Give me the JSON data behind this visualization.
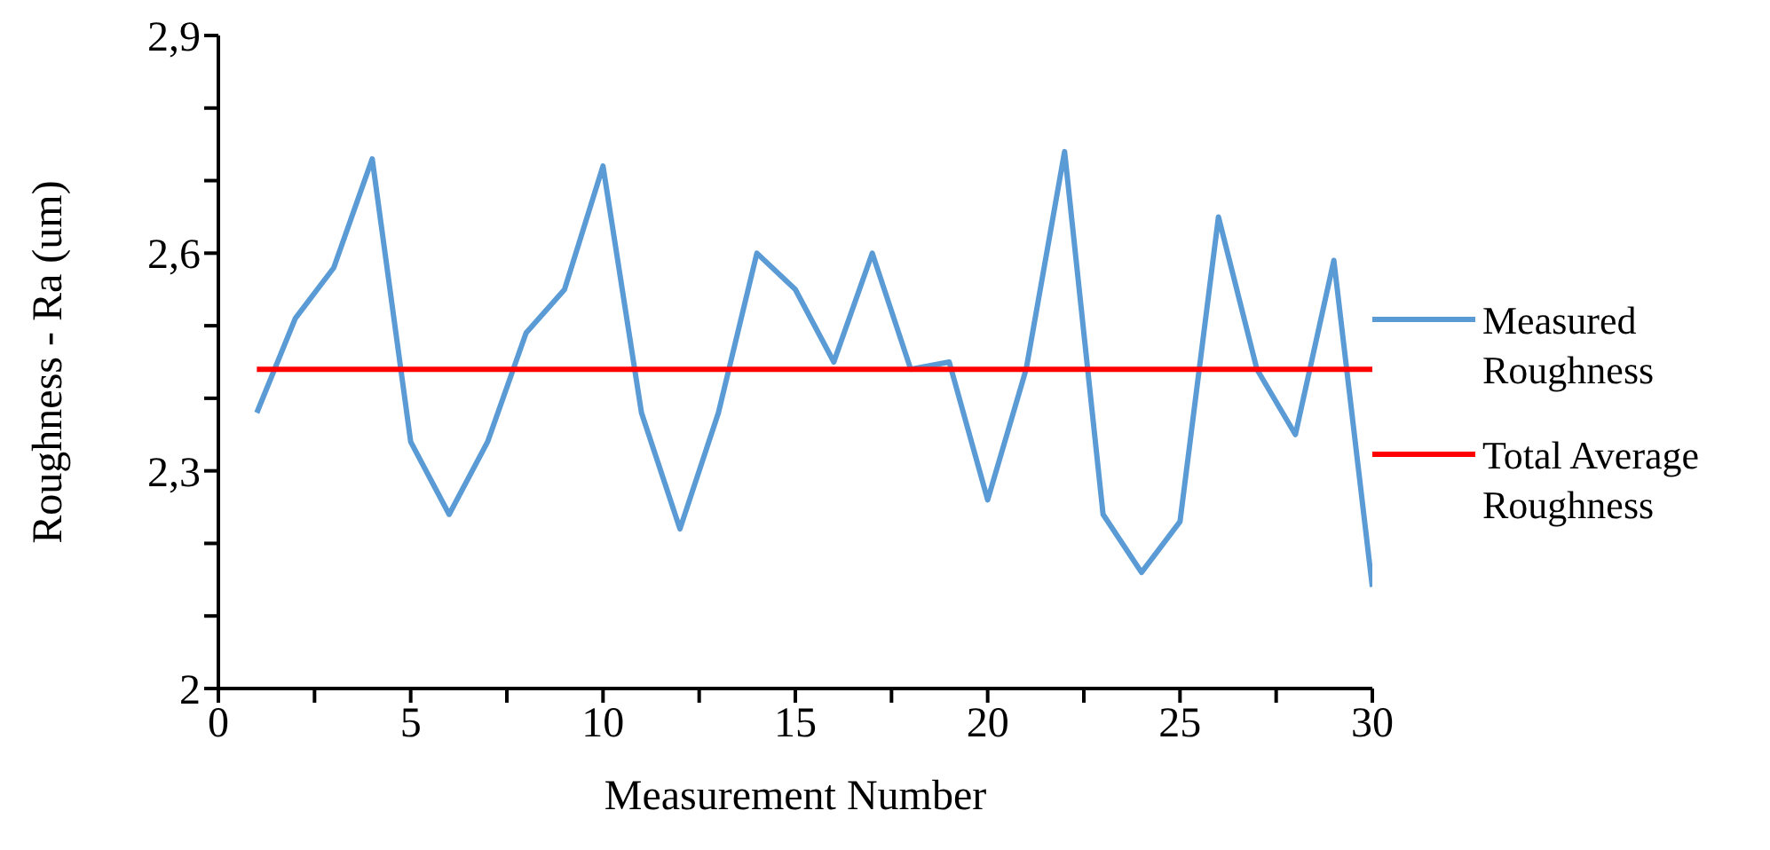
{
  "chart_data": {
    "type": "line",
    "xlabel": "Measurement Number",
    "ylabel": "Roughness - Ra (um)",
    "series": [
      {
        "name": "Measured Roughness",
        "color": "#5b9bd5",
        "x": [
          1,
          2,
          3,
          4,
          5,
          6,
          7,
          8,
          9,
          10,
          11,
          12,
          13,
          14,
          15,
          16,
          17,
          18,
          19,
          20,
          21,
          22,
          23,
          24,
          25,
          26,
          27,
          28,
          29,
          30
        ],
        "values": [
          2.38,
          2.51,
          2.58,
          2.73,
          2.34,
          2.24,
          2.34,
          2.49,
          2.55,
          2.72,
          2.38,
          2.22,
          2.38,
          2.6,
          2.55,
          2.45,
          2.6,
          2.44,
          2.45,
          2.26,
          2.44,
          2.74,
          2.24,
          2.16,
          2.23,
          2.65,
          2.44,
          2.35,
          2.59,
          2.14
        ]
      },
      {
        "name": "Total Average Roughness",
        "color": "#ff0000",
        "x": [
          1,
          30
        ],
        "values": [
          2.44,
          2.44
        ]
      }
    ],
    "xlim": [
      0,
      30
    ],
    "xticks": [
      0,
      {
        "value": 2.5,
        "label": null
      },
      5,
      {
        "value": 7.5,
        "label": null
      },
      10,
      {
        "value": 12.5,
        "label": null
      },
      15,
      {
        "value": 17.5,
        "label": null
      },
      20,
      {
        "value": 22.5,
        "label": null
      },
      25,
      {
        "value": 27.5,
        "label": null
      },
      30
    ],
    "ylim": [
      2,
      2.9
    ],
    "yticks": [
      {
        "value": 2,
        "label": "2"
      },
      {
        "value": 2.1,
        "label": null
      },
      {
        "value": 2.2,
        "label": null
      },
      {
        "value": 2.3,
        "label": "2,3"
      },
      {
        "value": 2.4,
        "label": null
      },
      {
        "value": 2.5,
        "label": null
      },
      {
        "value": 2.6,
        "label": "2,6"
      },
      {
        "value": 2.7,
        "label": null
      },
      {
        "value": 2.8,
        "label": null
      },
      {
        "value": 2.9,
        "label": "2,9"
      }
    ],
    "grid": false,
    "legend": "right",
    "marker": "none",
    "line_style": "solid"
  }
}
